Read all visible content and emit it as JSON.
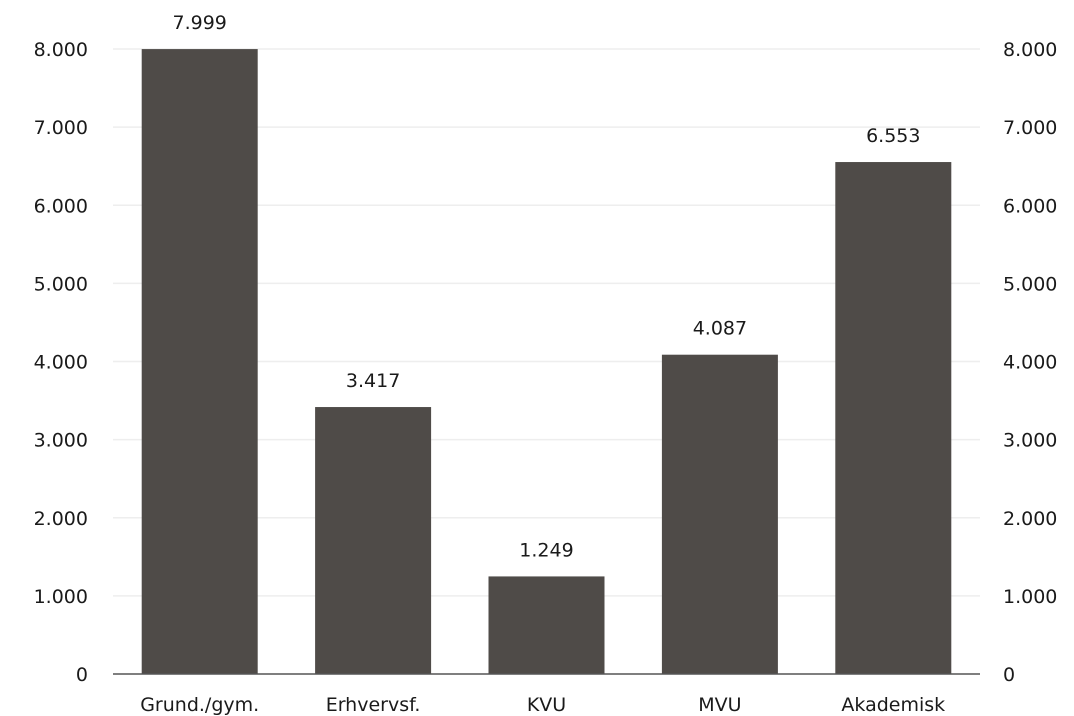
{
  "chart_data": {
    "type": "bar",
    "categories": [
      "Grund./gym.",
      "Erhvervsf.",
      "KVU",
      "MVU",
      "Akademisk"
    ],
    "values": [
      7999,
      3417,
      1249,
      4087,
      6553
    ],
    "data_labels": [
      "7.999",
      "3.417",
      "1.249",
      "4.087",
      "6.553"
    ],
    "ylim": [
      0,
      8000
    ],
    "y_ticks": [
      0,
      1000,
      2000,
      3000,
      4000,
      5000,
      6000,
      7000,
      8000
    ],
    "y_tick_labels": [
      "0",
      "1.000",
      "2.000",
      "3.000",
      "4.000",
      "5.000",
      "6.000",
      "7.000",
      "8.000"
    ],
    "right_axis_mirrors_left": true,
    "grid": true,
    "title": "",
    "xlabel": "",
    "ylabel": ""
  },
  "colors": {
    "bar": "#4f4b48",
    "grid": "#eeeeee",
    "axis": "#555555",
    "text": "#1a1a1a"
  }
}
